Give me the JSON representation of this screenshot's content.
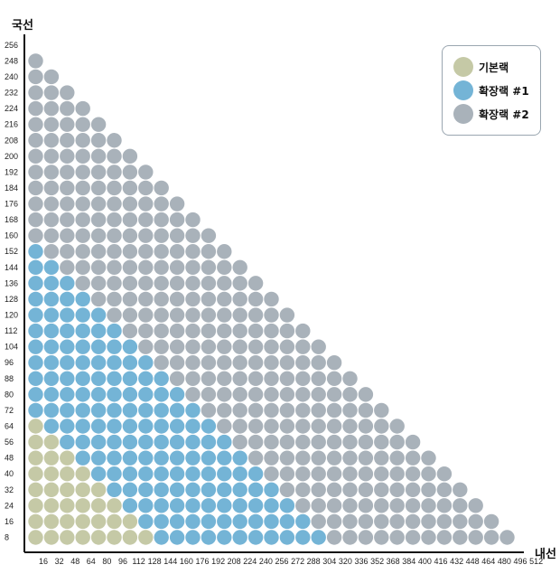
{
  "chart_data": {
    "type": "scatter",
    "title": "",
    "xlabel": "내선",
    "ylabel": "국선",
    "x_ticks": [
      16,
      32,
      48,
      64,
      80,
      96,
      112,
      128,
      144,
      160,
      176,
      192,
      208,
      224,
      240,
      256,
      272,
      288,
      304,
      320,
      336,
      352,
      368,
      384,
      400,
      416,
      432,
      448,
      464,
      480,
      496,
      512
    ],
    "y_ticks": [
      256,
      248,
      240,
      232,
      224,
      216,
      208,
      200,
      192,
      184,
      176,
      168,
      160,
      152,
      144,
      136,
      128,
      120,
      112,
      104,
      96,
      88,
      80,
      72,
      64,
      56,
      48,
      40,
      32,
      24,
      16,
      8
    ],
    "grid": false,
    "legend_position": "top-right",
    "series": [
      {
        "name": "기본랙",
        "color": "#c5c9a6"
      },
      {
        "name": "확장랙 #1",
        "color": "#74b4d6"
      },
      {
        "name": "확장랙 #2",
        "color": "#a9b2ba"
      }
    ],
    "row_boundaries_note_free": true,
    "rows": [
      {
        "y": 248,
        "count": 1,
        "base": 0,
        "ext1": 0
      },
      {
        "y": 240,
        "count": 2,
        "base": 0,
        "ext1": 0
      },
      {
        "y": 232,
        "count": 3,
        "base": 0,
        "ext1": 0
      },
      {
        "y": 224,
        "count": 4,
        "base": 0,
        "ext1": 0
      },
      {
        "y": 216,
        "count": 5,
        "base": 0,
        "ext1": 0
      },
      {
        "y": 208,
        "count": 6,
        "base": 0,
        "ext1": 0
      },
      {
        "y": 200,
        "count": 7,
        "base": 0,
        "ext1": 0
      },
      {
        "y": 192,
        "count": 8,
        "base": 0,
        "ext1": 0
      },
      {
        "y": 184,
        "count": 9,
        "base": 0,
        "ext1": 0
      },
      {
        "y": 176,
        "count": 10,
        "base": 0,
        "ext1": 0
      },
      {
        "y": 168,
        "count": 11,
        "base": 0,
        "ext1": 0
      },
      {
        "y": 160,
        "count": 12,
        "base": 0,
        "ext1": 0
      },
      {
        "y": 152,
        "count": 13,
        "base": 0,
        "ext1": 1
      },
      {
        "y": 144,
        "count": 14,
        "base": 0,
        "ext1": 2
      },
      {
        "y": 136,
        "count": 15,
        "base": 0,
        "ext1": 3
      },
      {
        "y": 128,
        "count": 16,
        "base": 0,
        "ext1": 4
      },
      {
        "y": 120,
        "count": 17,
        "base": 0,
        "ext1": 5
      },
      {
        "y": 112,
        "count": 18,
        "base": 0,
        "ext1": 6
      },
      {
        "y": 104,
        "count": 19,
        "base": 0,
        "ext1": 7
      },
      {
        "y": 96,
        "count": 20,
        "base": 0,
        "ext1": 8
      },
      {
        "y": 88,
        "count": 21,
        "base": 0,
        "ext1": 9
      },
      {
        "y": 80,
        "count": 22,
        "base": 0,
        "ext1": 10
      },
      {
        "y": 72,
        "count": 23,
        "base": 0,
        "ext1": 11
      },
      {
        "y": 64,
        "count": 24,
        "base": 1,
        "ext1": 11
      },
      {
        "y": 56,
        "count": 25,
        "base": 2,
        "ext1": 11
      },
      {
        "y": 48,
        "count": 26,
        "base": 3,
        "ext1": 11
      },
      {
        "y": 40,
        "count": 27,
        "base": 4,
        "ext1": 11
      },
      {
        "y": 32,
        "count": 28,
        "base": 5,
        "ext1": 11
      },
      {
        "y": 24,
        "count": 29,
        "base": 6,
        "ext1": 11
      },
      {
        "y": 16,
        "count": 30,
        "base": 7,
        "ext1": 11
      },
      {
        "y": 8,
        "count": 31,
        "base": 8,
        "ext1": 11
      }
    ]
  }
}
